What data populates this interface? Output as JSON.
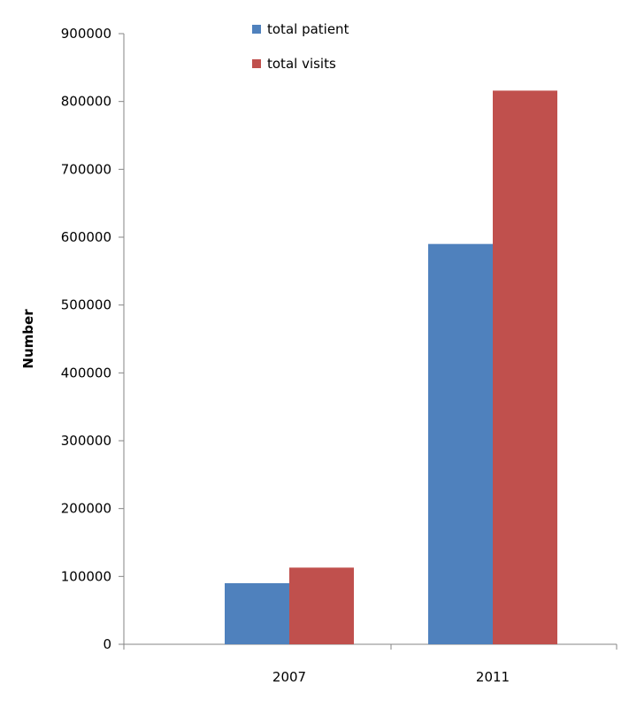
{
  "chart_data": {
    "type": "bar",
    "title": "",
    "xlabel": "",
    "ylabel": "Number",
    "categories": [
      "2007",
      "2011"
    ],
    "series": [
      {
        "name": "total patient",
        "color": "#4F81BD",
        "values": [
          90000,
          590000
        ]
      },
      {
        "name": "total visits",
        "color": "#C0504D",
        "values": [
          113000,
          816000
        ]
      }
    ],
    "ylim": [
      0,
      900000
    ],
    "yticks": [
      0,
      100000,
      200000,
      300000,
      400000,
      500000,
      600000,
      700000,
      800000,
      900000
    ],
    "grid": false,
    "legend_position": "top"
  }
}
